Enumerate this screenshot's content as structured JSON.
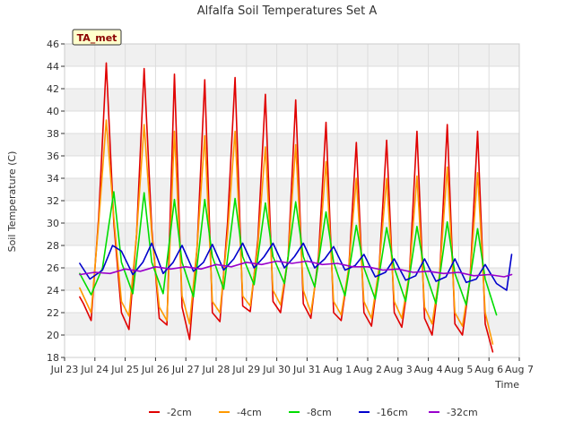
{
  "chart_data": {
    "type": "line",
    "title": "Alfalfa Soil Temperatures Set A",
    "xlabel": "Time",
    "ylabel": "Soil Temperature (C)",
    "ylim": [
      18,
      46
    ],
    "yticks": [
      18,
      20,
      22,
      24,
      26,
      28,
      30,
      32,
      34,
      36,
      38,
      40,
      42,
      44,
      46
    ],
    "xlim": [
      "2024-07-23",
      "2024-08-07"
    ],
    "xtick_labels": [
      "Jul 23",
      "Jul 24",
      "Jul 25",
      "Jul 26",
      "Jul 27",
      "Jul 28",
      "Jul 29",
      "Jul 30",
      "Jul 31",
      "Aug 1",
      "Aug 2",
      "Aug 3",
      "Aug 4",
      "Aug 5",
      "Aug 6",
      "Aug 7"
    ],
    "grid": true,
    "legend_position": "bottom",
    "badge_label": "TA_met",
    "series": [
      {
        "name": "-2cm",
        "color": "#e00000",
        "x": [
          "2024-07-23 12:00",
          "2024-07-23 15:00",
          "2024-07-23 21:00",
          "2024-07-24 03:00",
          "2024-07-24 09:00",
          "2024-07-24 15:00",
          "2024-07-24 21:00",
          "2024-07-25 03:00",
          "2024-07-25 09:00",
          "2024-07-25 15:00",
          "2024-07-25 21:00",
          "2024-07-26 03:00",
          "2024-07-26 09:00",
          "2024-07-26 15:00",
          "2024-07-26 21:00",
          "2024-07-27 03:00",
          "2024-07-27 09:00",
          "2024-07-27 15:00",
          "2024-07-27 21:00",
          "2024-07-28 03:00",
          "2024-07-28 09:00",
          "2024-07-28 15:00",
          "2024-07-28 21:00",
          "2024-07-29 03:00",
          "2024-07-29 09:00",
          "2024-07-29 15:00",
          "2024-07-29 21:00",
          "2024-07-30 03:00",
          "2024-07-30 09:00",
          "2024-07-30 15:00",
          "2024-07-30 21:00",
          "2024-07-31 03:00",
          "2024-07-31 09:00",
          "2024-07-31 15:00",
          "2024-07-31 21:00",
          "2024-08-01 03:00",
          "2024-08-01 09:00",
          "2024-08-01 15:00",
          "2024-08-01 21:00",
          "2024-08-02 03:00",
          "2024-08-02 09:00",
          "2024-08-02 15:00",
          "2024-08-02 21:00",
          "2024-08-03 03:00",
          "2024-08-03 09:00",
          "2024-08-03 15:00",
          "2024-08-03 21:00",
          "2024-08-04 03:00",
          "2024-08-04 09:00",
          "2024-08-04 15:00",
          "2024-08-04 21:00",
          "2024-08-05 03:00",
          "2024-08-05 09:00",
          "2024-08-05 15:00",
          "2024-08-05 21:00",
          "2024-08-06 03:00"
        ],
        "y": [
          23.4,
          22.8,
          21.3,
          30.5,
          44.3,
          30.0,
          22.0,
          20.5,
          29.0,
          43.8,
          29.5,
          21.5,
          20.9,
          43.3,
          22.5,
          19.6,
          28.0,
          42.8,
          22.0,
          21.2,
          30.0,
          43.0,
          22.6,
          22.1,
          28.5,
          41.5,
          23.0,
          22.0,
          27.0,
          41.0,
          22.8,
          21.5,
          27.0,
          39.0,
          22.0,
          21.3,
          26.0,
          37.2,
          22.0,
          20.8,
          26.0,
          37.4,
          22.0,
          20.7,
          25.5,
          38.2,
          21.5,
          20.0,
          25.5,
          38.8,
          21.0,
          20.0,
          25.0,
          38.2,
          21.0,
          18.5
        ]
      },
      {
        "name": "-4cm",
        "color": "#ff9900",
        "x": [
          "2024-07-23 12:00",
          "2024-07-23 21:00",
          "2024-07-24 03:00",
          "2024-07-24 09:00",
          "2024-07-24 15:00",
          "2024-07-24 21:00",
          "2024-07-25 03:00",
          "2024-07-25 09:00",
          "2024-07-25 15:00",
          "2024-07-25 21:00",
          "2024-07-26 03:00",
          "2024-07-26 09:00",
          "2024-07-26 15:00",
          "2024-07-26 21:00",
          "2024-07-27 03:00",
          "2024-07-27 09:00",
          "2024-07-27 15:00",
          "2024-07-27 21:00",
          "2024-07-28 03:00",
          "2024-07-28 09:00",
          "2024-07-28 15:00",
          "2024-07-28 21:00",
          "2024-07-29 03:00",
          "2024-07-29 09:00",
          "2024-07-29 15:00",
          "2024-07-29 21:00",
          "2024-07-30 03:00",
          "2024-07-30 09:00",
          "2024-07-30 15:00",
          "2024-07-30 21:00",
          "2024-07-31 03:00",
          "2024-07-31 09:00",
          "2024-07-31 15:00",
          "2024-07-31 21:00",
          "2024-08-01 03:00",
          "2024-08-01 09:00",
          "2024-08-01 15:00",
          "2024-08-01 21:00",
          "2024-08-02 03:00",
          "2024-08-02 09:00",
          "2024-08-02 15:00",
          "2024-08-02 21:00",
          "2024-08-03 03:00",
          "2024-08-03 09:00",
          "2024-08-03 15:00",
          "2024-08-03 21:00",
          "2024-08-04 03:00",
          "2024-08-04 09:00",
          "2024-08-04 15:00",
          "2024-08-04 21:00",
          "2024-08-05 03:00",
          "2024-08-05 09:00",
          "2024-08-05 15:00",
          "2024-08-05 21:00",
          "2024-08-06 03:00"
        ],
        "y": [
          24.2,
          22.0,
          30.0,
          39.2,
          30.5,
          23.0,
          21.7,
          29.0,
          38.8,
          29.0,
          22.5,
          21.3,
          38.2,
          23.5,
          21.0,
          28.0,
          37.8,
          23.0,
          22.0,
          29.0,
          38.2,
          23.5,
          22.6,
          28.0,
          36.8,
          24.0,
          22.7,
          27.0,
          37.0,
          24.0,
          22.0,
          26.5,
          35.5,
          23.0,
          21.8,
          26.0,
          34.0,
          23.0,
          21.5,
          26.0,
          34.0,
          23.0,
          21.5,
          25.5,
          34.2,
          22.5,
          21.0,
          25.5,
          35.0,
          22.0,
          20.8,
          25.0,
          34.5,
          22.0,
          19.2
        ]
      },
      {
        "name": "-8cm",
        "color": "#00dd00",
        "x": [
          "2024-07-23 12:00",
          "2024-07-23 21:00",
          "2024-07-24 06:00",
          "2024-07-24 15:00",
          "2024-07-24 21:00",
          "2024-07-25 06:00",
          "2024-07-25 15:00",
          "2024-07-25 21:00",
          "2024-07-26 06:00",
          "2024-07-26 15:00",
          "2024-07-26 21:00",
          "2024-07-27 06:00",
          "2024-07-27 15:00",
          "2024-07-27 21:00",
          "2024-07-28 06:00",
          "2024-07-28 15:00",
          "2024-07-28 21:00",
          "2024-07-29 06:00",
          "2024-07-29 15:00",
          "2024-07-29 21:00",
          "2024-07-30 06:00",
          "2024-07-30 15:00",
          "2024-07-30 21:00",
          "2024-07-31 06:00",
          "2024-07-31 15:00",
          "2024-07-31 21:00",
          "2024-08-01 06:00",
          "2024-08-01 15:00",
          "2024-08-01 21:00",
          "2024-08-02 06:00",
          "2024-08-02 15:00",
          "2024-08-02 21:00",
          "2024-08-03 06:00",
          "2024-08-03 15:00",
          "2024-08-03 21:00",
          "2024-08-04 06:00",
          "2024-08-04 15:00",
          "2024-08-04 21:00",
          "2024-08-05 06:00",
          "2024-08-05 15:00",
          "2024-08-05 21:00",
          "2024-08-06 06:00"
        ],
        "y": [
          25.5,
          23.6,
          26.0,
          32.8,
          26.5,
          23.7,
          32.7,
          26.5,
          23.7,
          32.1,
          26.5,
          23.4,
          32.1,
          27.0,
          24.1,
          32.2,
          27.0,
          24.5,
          31.8,
          27.0,
          24.6,
          31.9,
          27.0,
          24.3,
          31.0,
          26.5,
          23.5,
          29.8,
          26.0,
          23.2,
          29.6,
          26.0,
          23.0,
          29.7,
          25.8,
          22.8,
          30.1,
          25.5,
          22.7,
          29.5,
          25.0,
          21.8
        ]
      },
      {
        "name": "-16cm",
        "color": "#0000cc",
        "x": [
          "2024-07-23 12:00",
          "2024-07-23 20:00",
          "2024-07-24 06:00",
          "2024-07-24 14:00",
          "2024-07-24 21:00",
          "2024-07-25 06:00",
          "2024-07-25 14:00",
          "2024-07-25 21:00",
          "2024-07-26 06:00",
          "2024-07-26 14:00",
          "2024-07-26 21:00",
          "2024-07-27 06:00",
          "2024-07-27 14:00",
          "2024-07-27 21:00",
          "2024-07-28 06:00",
          "2024-07-28 14:00",
          "2024-07-28 21:00",
          "2024-07-29 06:00",
          "2024-07-29 14:00",
          "2024-07-29 21:00",
          "2024-07-30 06:00",
          "2024-07-30 14:00",
          "2024-07-30 21:00",
          "2024-07-31 06:00",
          "2024-07-31 14:00",
          "2024-07-31 21:00",
          "2024-08-01 06:00",
          "2024-08-01 14:00",
          "2024-08-01 21:00",
          "2024-08-02 06:00",
          "2024-08-02 14:00",
          "2024-08-02 21:00",
          "2024-08-03 06:00",
          "2024-08-03 14:00",
          "2024-08-03 21:00",
          "2024-08-04 06:00",
          "2024-08-04 14:00",
          "2024-08-04 21:00",
          "2024-08-05 06:00",
          "2024-08-05 14:00",
          "2024-08-05 21:00",
          "2024-08-06 06:00",
          "2024-08-06 14:00",
          "2024-08-06 18:00"
        ],
        "y": [
          26.4,
          25.0,
          25.8,
          28.0,
          27.5,
          25.4,
          26.5,
          28.2,
          25.5,
          26.5,
          28.0,
          25.7,
          26.5,
          28.1,
          25.8,
          26.8,
          28.2,
          26.0,
          27.0,
          28.2,
          26.0,
          27.0,
          28.2,
          26.0,
          26.8,
          27.9,
          25.8,
          26.2,
          27.2,
          25.2,
          25.6,
          26.8,
          24.9,
          25.3,
          26.8,
          24.8,
          25.2,
          26.8,
          24.7,
          25.0,
          26.3,
          24.6,
          24.0,
          27.2
        ]
      },
      {
        "name": "-32cm",
        "color": "#9900cc",
        "x": [
          "2024-07-23 12:00",
          "2024-07-24 00:00",
          "2024-07-24 12:00",
          "2024-07-25 00:00",
          "2024-07-25 12:00",
          "2024-07-26 00:00",
          "2024-07-26 12:00",
          "2024-07-27 00:00",
          "2024-07-27 12:00",
          "2024-07-28 00:00",
          "2024-07-28 12:00",
          "2024-07-29 00:00",
          "2024-07-29 12:00",
          "2024-07-30 00:00",
          "2024-07-30 12:00",
          "2024-07-31 00:00",
          "2024-07-31 12:00",
          "2024-08-01 00:00",
          "2024-08-01 12:00",
          "2024-08-02 00:00",
          "2024-08-02 12:00",
          "2024-08-03 00:00",
          "2024-08-03 12:00",
          "2024-08-04 00:00",
          "2024-08-04 12:00",
          "2024-08-05 00:00",
          "2024-08-05 12:00",
          "2024-08-06 00:00",
          "2024-08-06 12:00",
          "2024-08-06 18:00"
        ],
        "y": [
          25.4,
          25.6,
          25.5,
          25.9,
          25.7,
          26.1,
          25.9,
          26.1,
          25.9,
          26.3,
          26.1,
          26.5,
          26.3,
          26.6,
          26.4,
          26.6,
          26.3,
          26.4,
          26.1,
          26.1,
          25.8,
          25.9,
          25.6,
          25.7,
          25.5,
          25.6,
          25.3,
          25.4,
          25.2,
          25.4
        ]
      }
    ]
  }
}
